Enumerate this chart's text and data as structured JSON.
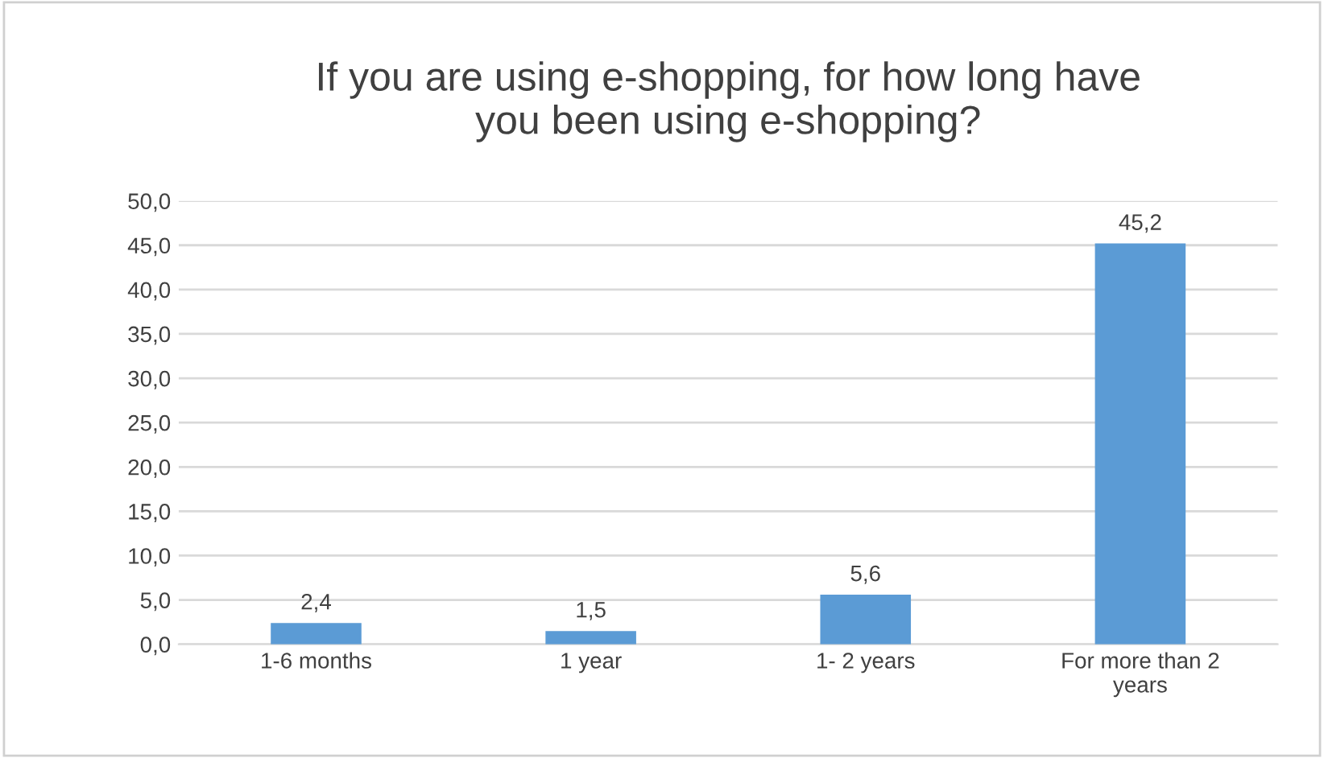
{
  "chart_data": {
    "type": "bar",
    "title": "If you are using e-shopping, for how long have\nyou been using e-shopping?",
    "categories": [
      "1-6 months",
      "1 year",
      "1- 2 years",
      "For more than 2\nyears"
    ],
    "values": [
      2.4,
      1.5,
      5.6,
      45.2
    ],
    "value_labels": [
      "2,4",
      "1,5",
      "5,6",
      "45,2"
    ],
    "color": "#5b9bd5",
    "ylim": [
      0,
      50
    ],
    "yticks": [
      {
        "value": 0,
        "label": "0,0"
      },
      {
        "value": 5,
        "label": "5,0"
      },
      {
        "value": 10,
        "label": "10,0"
      },
      {
        "value": 15,
        "label": "15,0"
      },
      {
        "value": 20,
        "label": "20,0"
      },
      {
        "value": 25,
        "label": "25,0"
      },
      {
        "value": 30,
        "label": "30,0"
      },
      {
        "value": 35,
        "label": "35,0"
      },
      {
        "value": 40,
        "label": "40,0"
      },
      {
        "value": 45,
        "label": "45,0"
      },
      {
        "value": 50,
        "label": "50,0"
      }
    ],
    "grid": "y",
    "legend": false
  }
}
